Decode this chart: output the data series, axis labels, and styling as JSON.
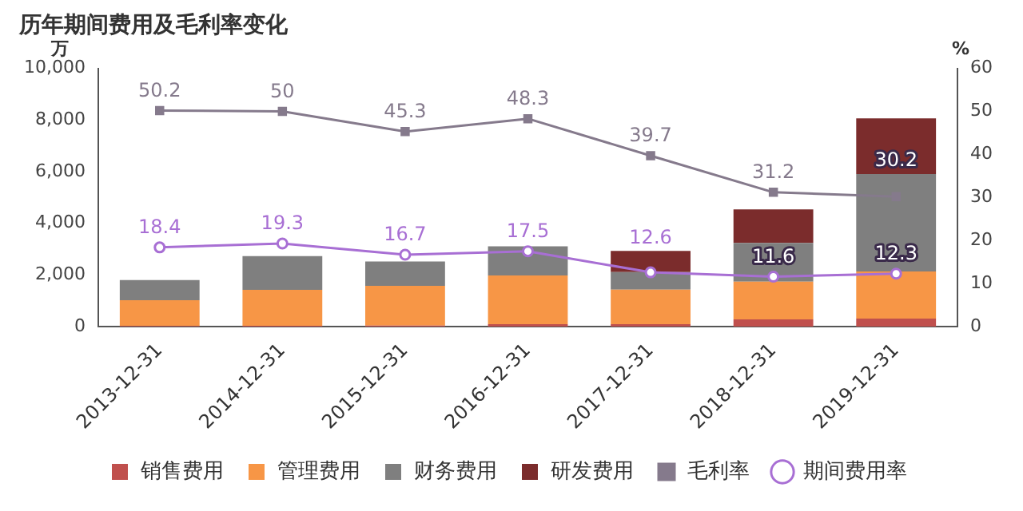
{
  "chart_data": {
    "type": "bar",
    "title": "历年期间费用及毛利率变化",
    "ylabel": "万",
    "y2label": "%",
    "stacked": true,
    "legend": "bottom",
    "grid": false,
    "categories": [
      "2013-12-31",
      "2014-12-31",
      "2015-12-31",
      "2016-12-31",
      "2017-12-31",
      "2018-12-31",
      "2019-12-31"
    ],
    "ylim": [
      0,
      10000
    ],
    "yticks": [
      0,
      {
        "value": 2000,
        "label": "2,000"
      },
      {
        "value": 4000,
        "label": "4,000"
      },
      {
        "value": 6000,
        "label": "6,000"
      },
      {
        "value": 8000,
        "label": "8,000"
      },
      {
        "value": 10000,
        "label": "10,000"
      }
    ],
    "y2lim": [
      0,
      60
    ],
    "y2ticks": [
      0,
      10,
      20,
      30,
      40,
      50,
      60
    ],
    "series": [
      {
        "name": "销售费用",
        "color": "#c0504d",
        "values": [
          20,
          30,
          40,
          90,
          90,
          280,
          310
        ]
      },
      {
        "name": "管理费用",
        "color": "#f79646",
        "values": [
          1000,
          1390,
          1540,
          1890,
          1340,
          1460,
          1820
        ]
      },
      {
        "name": "财务费用",
        "color": "#7f7f7f",
        "values": [
          780,
          1310,
          940,
          1130,
          680,
          1500,
          3780
        ]
      },
      {
        "name": "研发费用",
        "color": "#7b2c2c",
        "values": [
          null,
          null,
          null,
          null,
          820,
          1300,
          2150
        ]
      },
      {
        "name": "毛利率",
        "type": "line",
        "axis": "y2",
        "marker": "square",
        "color": "#857a8c",
        "values": [
          50.2,
          50,
          45.3,
          48.3,
          39.7,
          31.2,
          30.2
        ],
        "value_labels": [
          "50.2",
          "50",
          "45.3",
          "48.3",
          "39.7",
          "31.2",
          "30.2"
        ]
      },
      {
        "name": "期间费用率",
        "type": "line",
        "axis": "y2",
        "marker": "circle",
        "color": "#a86fd4",
        "values": [
          18.4,
          19.3,
          16.7,
          17.5,
          12.6,
          11.6,
          12.3
        ],
        "value_labels": [
          "18.4",
          "19.3",
          "16.7",
          "17.5",
          "12.6",
          "11.6",
          "12.3"
        ]
      }
    ]
  }
}
